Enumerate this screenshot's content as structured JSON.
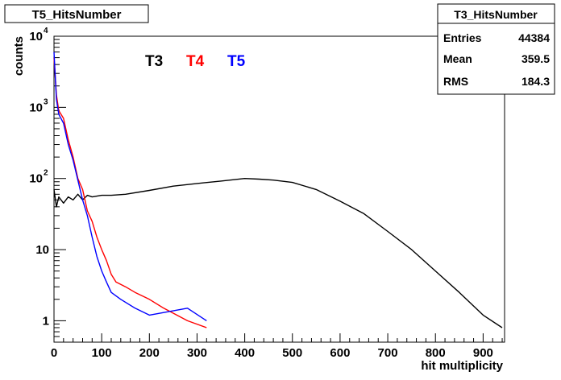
{
  "chart_data": {
    "type": "line",
    "title": "T5_HitsNumber",
    "xlabel": "hit multiplicity",
    "ylabel": "counts",
    "xlim": [
      0,
      945
    ],
    "ylim": [
      0.5,
      10000
    ],
    "yscale": "log",
    "grid": false,
    "x_ticks": [
      0,
      100,
      200,
      300,
      400,
      500,
      600,
      700,
      800,
      900
    ],
    "y_ticks": [
      {
        "value": 1,
        "base": "1",
        "exp": ""
      },
      {
        "value": 10,
        "base": "10",
        "exp": ""
      },
      {
        "value": 100,
        "base": "10",
        "exp": "2"
      },
      {
        "value": 1000,
        "base": "10",
        "exp": "3"
      },
      {
        "value": 10000,
        "base": "10",
        "exp": "4"
      }
    ],
    "legend": {
      "placement": "top-left",
      "entries": [
        {
          "label": "T3",
          "color": "#000000"
        },
        {
          "label": "T4",
          "color": "#ff0000"
        },
        {
          "label": "T5",
          "color": "#0000ff"
        }
      ]
    },
    "stats_box": {
      "title": "T3_HitsNumber",
      "rows": [
        {
          "label": "Entries",
          "value": "44384"
        },
        {
          "label": "Mean",
          "value": "359.5"
        },
        {
          "label": "RMS",
          "value": "184.3"
        }
      ]
    },
    "series": [
      {
        "name": "T3",
        "color": "#000000",
        "points": [
          [
            0,
            70
          ],
          [
            5,
            40
          ],
          [
            10,
            55
          ],
          [
            20,
            45
          ],
          [
            30,
            55
          ],
          [
            40,
            50
          ],
          [
            50,
            60
          ],
          [
            60,
            50
          ],
          [
            70,
            58
          ],
          [
            80,
            55
          ],
          [
            100,
            58
          ],
          [
            120,
            58
          ],
          [
            150,
            60
          ],
          [
            200,
            68
          ],
          [
            250,
            78
          ],
          [
            300,
            85
          ],
          [
            350,
            92
          ],
          [
            400,
            100
          ],
          [
            430,
            98
          ],
          [
            460,
            95
          ],
          [
            500,
            88
          ],
          [
            550,
            70
          ],
          [
            600,
            48
          ],
          [
            650,
            32
          ],
          [
            700,
            18
          ],
          [
            750,
            10
          ],
          [
            800,
            5
          ],
          [
            850,
            2.5
          ],
          [
            900,
            1.2
          ],
          [
            940,
            0.8
          ]
        ]
      },
      {
        "name": "T4",
        "color": "#ff0000",
        "points": [
          [
            0,
            5000
          ],
          [
            5,
            1500
          ],
          [
            10,
            900
          ],
          [
            20,
            700
          ],
          [
            30,
            350
          ],
          [
            40,
            200
          ],
          [
            50,
            100
          ],
          [
            60,
            70
          ],
          [
            70,
            35
          ],
          [
            80,
            25
          ],
          [
            90,
            15
          ],
          [
            100,
            10
          ],
          [
            110,
            7
          ],
          [
            120,
            4.5
          ],
          [
            130,
            3.5
          ],
          [
            150,
            3
          ],
          [
            170,
            2.5
          ],
          [
            200,
            2
          ],
          [
            230,
            1.5
          ],
          [
            280,
            1
          ],
          [
            320,
            0.8
          ]
        ]
      },
      {
        "name": "T5",
        "color": "#0000ff",
        "points": [
          [
            0,
            6000
          ],
          [
            5,
            1300
          ],
          [
            10,
            800
          ],
          [
            20,
            600
          ],
          [
            30,
            300
          ],
          [
            40,
            180
          ],
          [
            50,
            95
          ],
          [
            60,
            50
          ],
          [
            70,
            30
          ],
          [
            80,
            15
          ],
          [
            90,
            8
          ],
          [
            100,
            5
          ],
          [
            110,
            3.5
          ],
          [
            120,
            2.5
          ],
          [
            140,
            2
          ],
          [
            170,
            1.5
          ],
          [
            200,
            1.2
          ],
          [
            280,
            1.5
          ],
          [
            320,
            1
          ]
        ]
      }
    ]
  }
}
